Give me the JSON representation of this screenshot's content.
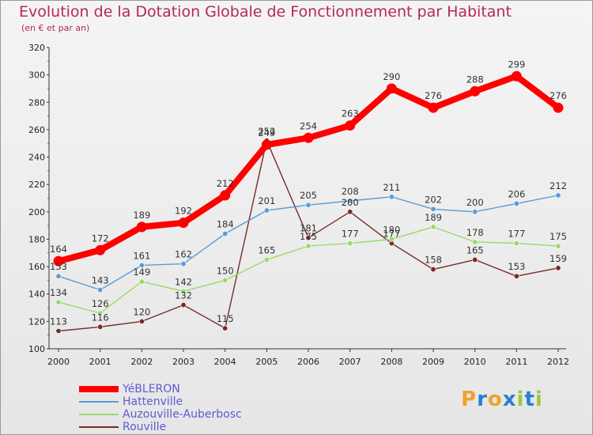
{
  "title": "Evolution de la Dotation Globale de Fonctionnement par Habitant",
  "subtitle": "(en € et par an)",
  "logo": {
    "text": "Proxiti",
    "letters": [
      "P",
      "r",
      "o",
      "x",
      "i",
      "t",
      "i"
    ],
    "colors": [
      "#f0a12a",
      "#2a7fd4",
      "#f0a12a",
      "#2a7fd4",
      "#9ac93c",
      "#2a7fd4",
      "#9ac93c"
    ]
  },
  "chart_data": {
    "type": "line",
    "title": "Evolution de la Dotation Globale de Fonctionnement par Habitant",
    "ylabel": "(en € et par an)",
    "x": [
      "2000",
      "2001",
      "2002",
      "2003",
      "2004",
      "2005",
      "2006",
      "2007",
      "2008",
      "2009",
      "2010",
      "2011",
      "2012"
    ],
    "ylim": [
      100,
      320
    ],
    "yticks": [
      100,
      120,
      140,
      160,
      180,
      200,
      220,
      240,
      260,
      280,
      300,
      320
    ],
    "grid": false,
    "legend_position": "bottom-left",
    "series": [
      {
        "name": "YéBLERON",
        "color": "#ff0000",
        "values": [
          164,
          172,
          189,
          192,
          212,
          249,
          254,
          263,
          290,
          276,
          288,
          299,
          276
        ]
      },
      {
        "name": "Hattenville",
        "color": "#5b9bd5",
        "values": [
          153,
          143,
          161,
          162,
          184,
          201,
          205,
          208,
          211,
          202,
          200,
          206,
          212
        ]
      },
      {
        "name": "Auzouville-Auberbosc",
        "color": "#99d96a",
        "values": [
          134,
          126,
          149,
          142,
          150,
          165,
          175,
          177,
          180,
          189,
          178,
          177,
          175
        ]
      },
      {
        "name": "Rouville",
        "color": "#7b2a2a",
        "values": [
          113,
          116,
          120,
          132,
          115,
          252,
          181,
          200,
          177,
          158,
          165,
          153,
          159
        ]
      }
    ]
  }
}
